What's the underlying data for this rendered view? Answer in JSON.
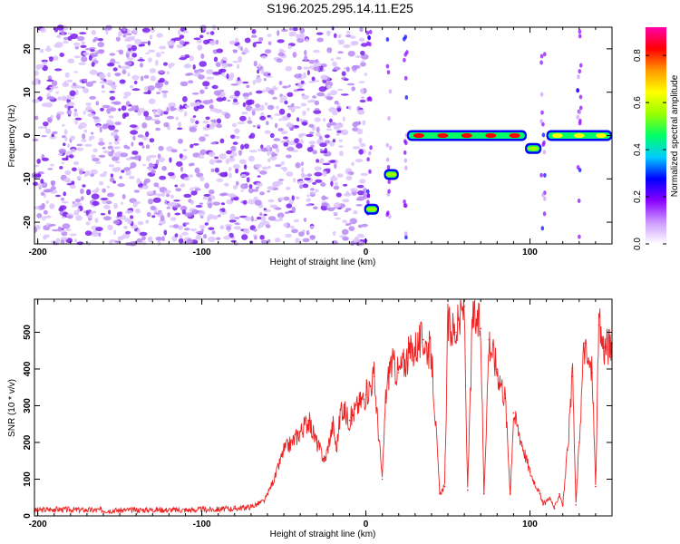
{
  "title": "S196.2025.295.14.11.E25",
  "chart_data": [
    {
      "type": "heatmap",
      "xlabel": "Height of straight line (km)",
      "ylabel": "Frequency (Hz)",
      "xlim": [
        -202,
        150
      ],
      "ylim": [
        -25,
        25
      ],
      "xticks": [
        -200,
        -100,
        0,
        100
      ],
      "yticks": [
        -20,
        -10,
        0,
        10,
        20
      ],
      "colorbar": {
        "label": "Normalized spectral amplitude",
        "ticks": [
          "0.0",
          "0.2",
          "0.4",
          "0.6",
          "0.8"
        ],
        "range": [
          0,
          0.92
        ],
        "colors": [
          "#ffffff",
          "#cc99ff",
          "#8800ff",
          "#0000ff",
          "#00ccff",
          "#00ff66",
          "#99ff00",
          "#ffff00",
          "#ff9900",
          "#ff0000",
          "#ff00aa"
        ]
      },
      "features": [
        {
          "name": "noise",
          "x_range": [
            -202,
            0
          ],
          "freq_range": [
            -25,
            25
          ],
          "level": 0.05
        },
        {
          "name": "trace-segment-1",
          "x_range": [
            -1,
            8
          ],
          "freq": -17,
          "level": 0.55
        },
        {
          "name": "trace-segment-2",
          "x_range": [
            11,
            20
          ],
          "freq": -9,
          "level": 0.6
        },
        {
          "name": "trace-segment-3",
          "x_range": [
            25,
            98
          ],
          "freq": 0,
          "level": 0.9
        },
        {
          "name": "trace-dip",
          "x_range": [
            97,
            107
          ],
          "freq": -3,
          "level": 0.6
        },
        {
          "name": "trace-segment-4",
          "x_range": [
            110,
            150
          ],
          "freq": 0,
          "level": 0.7
        }
      ]
    },
    {
      "type": "line",
      "xlabel": "Height of straight line (km)",
      "ylabel": "SNR (10 * v/v)",
      "xlim": [
        -202,
        150
      ],
      "ylim": [
        0,
        590
      ],
      "xticks": [
        -200,
        -100,
        0,
        100
      ],
      "yticks": [
        0,
        100,
        200,
        300,
        400,
        500
      ],
      "series": [
        {
          "name": "SNR",
          "color": "#ee2222",
          "x": [
            -202,
            -190,
            -170,
            -150,
            -130,
            -110,
            -90,
            -80,
            -70,
            -62,
            -55,
            -50,
            -45,
            -40,
            -35,
            -30,
            -25,
            -20,
            -18,
            -15,
            -10,
            -5,
            0,
            5,
            10,
            12,
            15,
            20,
            25,
            30,
            35,
            40,
            45,
            48,
            50,
            55,
            60,
            62,
            65,
            70,
            72,
            75,
            80,
            85,
            88,
            90,
            95,
            100,
            103,
            106,
            108,
            112,
            115,
            118,
            120,
            123,
            126,
            128,
            130,
            133,
            135,
            138,
            140,
            142,
            145,
            150
          ],
          "y": [
            15,
            18,
            16,
            15,
            17,
            16,
            18,
            20,
            25,
            40,
            110,
            180,
            200,
            230,
            260,
            200,
            150,
            250,
            180,
            300,
            260,
            300,
            330,
            380,
            100,
            320,
            420,
            390,
            430,
            460,
            480,
            440,
            60,
            80,
            520,
            500,
            570,
            70,
            540,
            510,
            60,
            480,
            400,
            320,
            60,
            280,
            200,
            120,
            90,
            60,
            30,
            50,
            20,
            60,
            30,
            180,
            380,
            30,
            200,
            470,
            420,
            390,
            80,
            520,
            460,
            470
          ]
        }
      ]
    }
  ]
}
